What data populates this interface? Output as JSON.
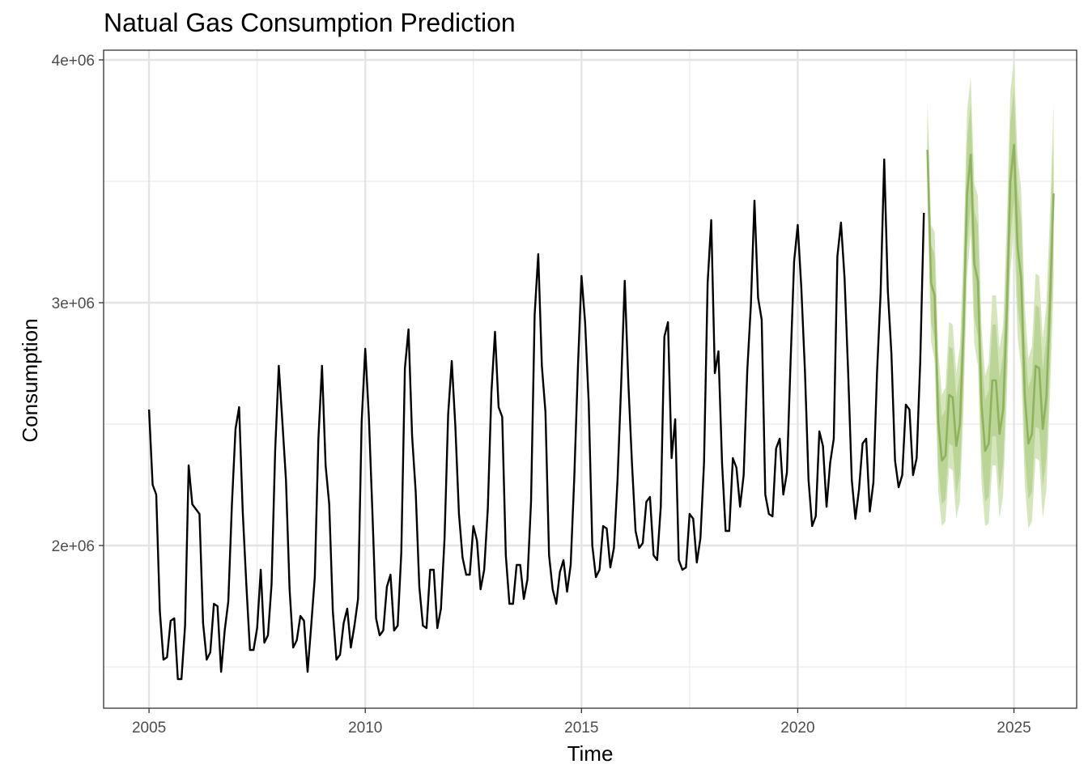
{
  "chart_data": {
    "type": "line",
    "title": "Natual Gas Consumption Prediction",
    "xlabel": "Time",
    "ylabel": "Consumption",
    "xlim": [
      2003.95,
      2026.45
    ],
    "ylim": [
      1330000,
      4040000
    ],
    "x_ticks": [
      2005,
      2010,
      2015,
      2020,
      2025
    ],
    "x_tick_labels": [
      "2005",
      "2010",
      "2015",
      "2020",
      "2025"
    ],
    "y_ticks": [
      2000000,
      3000000,
      4000000
    ],
    "y_tick_labels": [
      "2e+06",
      "3e+06",
      "4e+06"
    ],
    "grid": true,
    "legend": "none",
    "colors": {
      "history": "#000000",
      "forecast": "#8fb35c",
      "band95": "#d5e6bd",
      "band80": "#bad596"
    },
    "series": [
      {
        "role": "history",
        "x_start": 2005.0,
        "x_step": 0.08333333,
        "values": [
          2560000,
          2250000,
          2210000,
          1730000,
          1530000,
          1540000,
          1690000,
          1700000,
          1450000,
          1450000,
          1670000,
          2330000,
          2170000,
          2150000,
          2130000,
          1680000,
          1530000,
          1560000,
          1760000,
          1750000,
          1480000,
          1650000,
          1770000,
          2170000,
          2480000,
          2570000,
          2140000,
          1840000,
          1570000,
          1570000,
          1660000,
          1900000,
          1600000,
          1630000,
          1840000,
          2390000,
          2740000,
          2510000,
          2270000,
          1820000,
          1580000,
          1610000,
          1710000,
          1690000,
          1480000,
          1670000,
          1870000,
          2440000,
          2740000,
          2330000,
          2170000,
          1730000,
          1530000,
          1550000,
          1680000,
          1740000,
          1580000,
          1670000,
          1780000,
          2510000,
          2810000,
          2530000,
          2130000,
          1700000,
          1630000,
          1650000,
          1830000,
          1880000,
          1650000,
          1670000,
          1970000,
          2730000,
          2890000,
          2450000,
          2220000,
          1830000,
          1670000,
          1660000,
          1900000,
          1900000,
          1660000,
          1740000,
          2030000,
          2540000,
          2760000,
          2490000,
          2130000,
          1950000,
          1880000,
          1880000,
          2080000,
          2020000,
          1820000,
          1900000,
          2150000,
          2630000,
          2880000,
          2570000,
          2530000,
          1960000,
          1760000,
          1760000,
          1920000,
          1920000,
          1780000,
          1860000,
          2180000,
          2950000,
          3200000,
          2740000,
          2550000,
          1960000,
          1820000,
          1760000,
          1890000,
          1940000,
          1810000,
          1920000,
          2280000,
          2730000,
          3110000,
          2920000,
          2590000,
          2000000,
          1870000,
          1900000,
          2080000,
          2070000,
          1910000,
          1990000,
          2270000,
          2660000,
          3090000,
          2670000,
          2340000,
          2060000,
          1990000,
          2010000,
          2180000,
          2200000,
          1960000,
          1940000,
          2160000,
          2860000,
          2920000,
          2360000,
          2520000,
          1940000,
          1900000,
          1910000,
          2130000,
          2110000,
          1930000,
          2030000,
          2340000,
          3080000,
          3340000,
          2710000,
          2800000,
          2340000,
          2060000,
          2060000,
          2360000,
          2320000,
          2160000,
          2290000,
          2720000,
          2990000,
          3420000,
          3020000,
          2930000,
          2210000,
          2130000,
          2120000,
          2400000,
          2440000,
          2210000,
          2300000,
          2750000,
          3170000,
          3320000,
          3060000,
          2720000,
          2270000,
          2080000,
          2120000,
          2470000,
          2410000,
          2160000,
          2340000,
          2440000,
          3190000,
          3330000,
          3100000,
          2710000,
          2270000,
          2110000,
          2230000,
          2420000,
          2440000,
          2140000,
          2260000,
          2710000,
          3040000,
          3590000,
          3050000,
          2790000,
          2350000,
          2240000,
          2290000,
          2580000,
          2560000,
          2290000,
          2360000,
          2760000,
          3370000
        ]
      },
      {
        "role": "forecast",
        "x_start": 2023.0,
        "x_step": 0.08333333,
        "values": [
          3630000,
          3080000,
          3030000,
          2510000,
          2350000,
          2370000,
          2620000,
          2610000,
          2410000,
          2500000,
          2890000,
          3450000,
          3610000,
          3160000,
          3090000,
          2580000,
          2390000,
          2420000,
          2680000,
          2680000,
          2460000,
          2560000,
          2960000,
          3500000,
          3650000,
          3230000,
          3100000,
          2620000,
          2420000,
          2460000,
          2740000,
          2730000,
          2480000,
          2610000,
          3000000,
          3450000
        ],
        "lower80": [
          3490000,
          2920000,
          2850000,
          2320000,
          2170000,
          2190000,
          2420000,
          2410000,
          2210000,
          2290000,
          2670000,
          3230000,
          3400000,
          2940000,
          2860000,
          2370000,
          2180000,
          2200000,
          2450000,
          2450000,
          2230000,
          2330000,
          2720000,
          3260000,
          3420000,
          2990000,
          2860000,
          2380000,
          2190000,
          2220000,
          2490000,
          2480000,
          2240000,
          2360000,
          2750000,
          3210000
        ],
        "upper80": [
          3770000,
          3240000,
          3200000,
          2700000,
          2530000,
          2560000,
          2820000,
          2810000,
          2610000,
          2710000,
          3110000,
          3670000,
          3820000,
          3380000,
          3320000,
          2790000,
          2600000,
          2640000,
          2910000,
          2910000,
          2690000,
          2790000,
          3200000,
          3740000,
          3880000,
          3470000,
          3340000,
          2860000,
          2650000,
          2700000,
          2990000,
          2980000,
          2720000,
          2860000,
          3250000,
          3690000
        ],
        "lower95": [
          3420000,
          2840000,
          2760000,
          2220000,
          2080000,
          2100000,
          2320000,
          2310000,
          2110000,
          2180000,
          2560000,
          3110000,
          3290000,
          2830000,
          2740000,
          2260000,
          2080000,
          2090000,
          2330000,
          2330000,
          2110000,
          2210000,
          2600000,
          3130000,
          3300000,
          2860000,
          2730000,
          2250000,
          2070000,
          2100000,
          2360000,
          2350000,
          2110000,
          2230000,
          2620000,
          3080000
        ],
        "upper95": [
          3840000,
          3320000,
          3290000,
          2800000,
          2620000,
          2650000,
          2920000,
          2910000,
          2710000,
          2820000,
          3220000,
          3790000,
          3930000,
          3490000,
          3440000,
          2900000,
          2700000,
          2750000,
          3030000,
          3030000,
          2810000,
          2910000,
          3320000,
          3870000,
          4000000,
          3600000,
          3470000,
          2990000,
          2770000,
          2820000,
          3120000,
          3110000,
          2850000,
          2990000,
          3380000,
          3820000
        ]
      }
    ]
  }
}
